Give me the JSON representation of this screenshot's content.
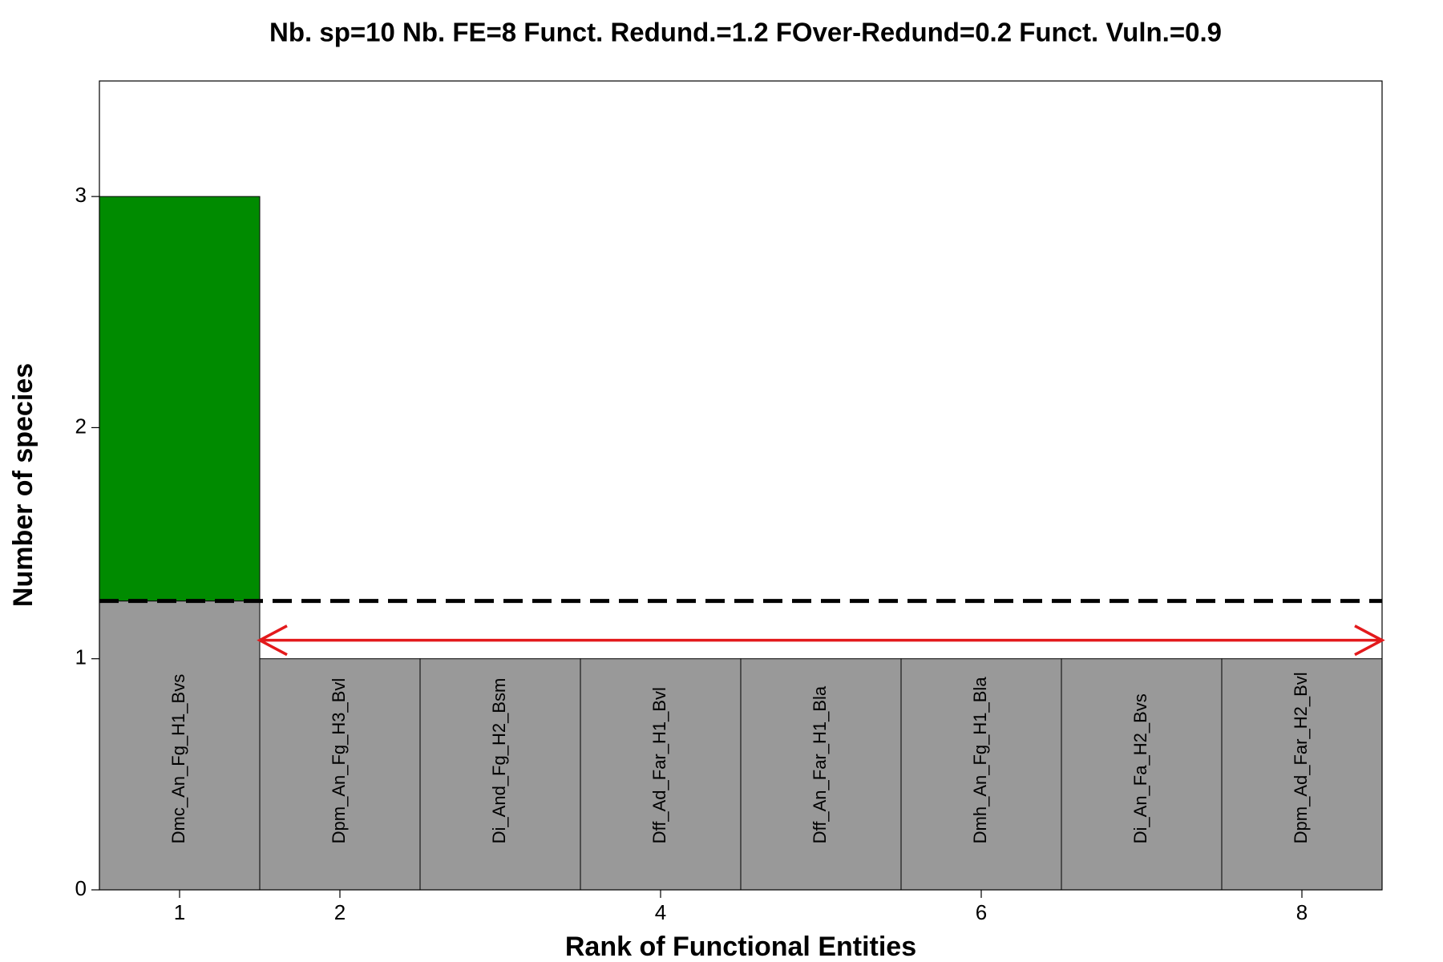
{
  "chart_data": {
    "type": "bar",
    "title": "Nb. sp=10  Nb. FE=8  Funct. Redund.=1.2  FOver-Redund=0.2  Funct. Vuln.=0.9",
    "x_label": "Rank of Functional Entities",
    "y_label": "Number of species",
    "x": [
      1,
      2,
      3,
      4,
      5,
      6,
      7,
      8
    ],
    "values": [
      3,
      1,
      1,
      1,
      1,
      1,
      1,
      1
    ],
    "labels": [
      "Dmc_An_Fg_H1_Bvs",
      "Dpm_An_Fg_H3_Bvl",
      "Di_And_Fg_H2_Bsm",
      "Dff_Ad_Far_H1_Bvl",
      "Dff_An_Far_H1_Bla",
      "Dmh_An_Fg_H1_Bla",
      "Di_An_Fa_H2_Bvs",
      "Dpm_Ad_Far_H2_Bvl"
    ],
    "color": "#999999",
    "over_color": "#008B00",
    "redundancy_line": 1.25,
    "arrow": {
      "x": [
        1.5,
        8.5
      ],
      "y": 1.08,
      "color": "#e31a1c"
    },
    "xlim": [
      0.5,
      8.5
    ],
    "ylim": [
      0,
      3.5
    ],
    "xticks": [
      1,
      2,
      4,
      6,
      8
    ],
    "yticks": [
      0,
      1,
      2,
      3
    ]
  }
}
